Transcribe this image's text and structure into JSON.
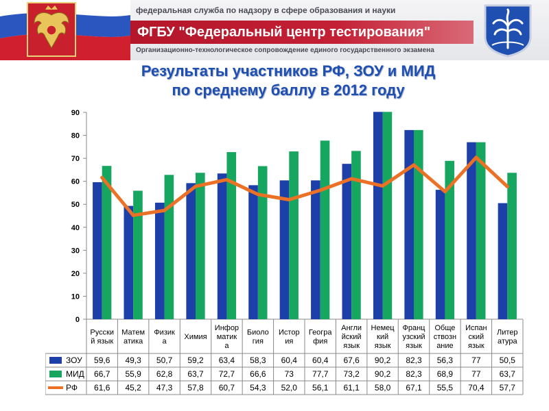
{
  "header": {
    "agency": "федеральная служба по надзору в сфере образования и науки",
    "title": "ФГБУ \"Федеральный центр тестирования\"",
    "subtitle": "Организационно-технологическое сопровождение единого государственного экзамена",
    "colors": {
      "red": "#c01c30",
      "blue": "#1f4fb0"
    }
  },
  "headline": {
    "line1": "Результаты участников РФ, ЗОУ и МИД",
    "line2": "по среднему баллу в 2012 году"
  },
  "chart_data": {
    "type": "bar",
    "title": "",
    "xlabel": "",
    "ylabel": "",
    "ylim": [
      0,
      90
    ],
    "yticks": [
      "0",
      "10",
      "20",
      "30",
      "40",
      "50",
      "60",
      "70",
      "80",
      "90"
    ],
    "grid": false,
    "legend": "bottom-left, in data table",
    "categories": [
      [
        "Русски",
        "й язык"
      ],
      [
        "Матем",
        "атика"
      ],
      [
        "Физик",
        "а"
      ],
      [
        "Химия"
      ],
      [
        "Инфор",
        "матик",
        "а"
      ],
      [
        "Биоло",
        "гия"
      ],
      [
        "Истор",
        "ия"
      ],
      [
        "Геогра",
        "фия"
      ],
      [
        "Англи",
        "йский",
        "язык"
      ],
      [
        "Немец",
        "кий",
        "язык"
      ],
      [
        "Франц",
        "узский",
        "язык"
      ],
      [
        "Обще",
        "ствозн",
        "ание"
      ],
      [
        "Испан",
        "ский",
        "язык"
      ],
      [
        "Литер",
        "атура"
      ]
    ],
    "series": [
      {
        "name": "ЗОУ",
        "kind": "bar",
        "color": "#1c3fa8",
        "values": [
          59.6,
          49.3,
          50.7,
          59.2,
          63.4,
          58.3,
          60.4,
          60.4,
          67.6,
          90.2,
          82.3,
          56.3,
          77,
          50.5
        ],
        "labels": [
          "59,6",
          "49,3",
          "50,7",
          "59,2",
          "63,4",
          "58,3",
          "60,4",
          "60,4",
          "67,6",
          "90,2",
          "82,3",
          "56,3",
          "77",
          "50,5"
        ]
      },
      {
        "name": "МИД",
        "kind": "bar",
        "color": "#17a660",
        "values": [
          66.7,
          55.9,
          62.8,
          63.7,
          72.7,
          66.6,
          73,
          77.7,
          73.2,
          90.2,
          82.3,
          68.9,
          77,
          63.7
        ],
        "labels": [
          "66,7",
          "55,9",
          "62,8",
          "63,7",
          "72,7",
          "66,6",
          "73",
          "77,7",
          "73,2",
          "90,2",
          "82,3",
          "68,9",
          "77",
          "63,7"
        ]
      },
      {
        "name": "РФ",
        "kind": "line",
        "color": "#ea7125",
        "values": [
          61.6,
          45.2,
          47.3,
          57.8,
          60.7,
          54.3,
          52.0,
          56.1,
          61.1,
          58.0,
          67.1,
          55.5,
          70.4,
          57.7
        ],
        "labels": [
          "61,6",
          "45,2",
          "47,3",
          "57,8",
          "60,7",
          "54,3",
          "52,0",
          "56,1",
          "61,1",
          "58,0",
          "67,1",
          "55,5",
          "70,4",
          "57,7"
        ]
      }
    ]
  }
}
